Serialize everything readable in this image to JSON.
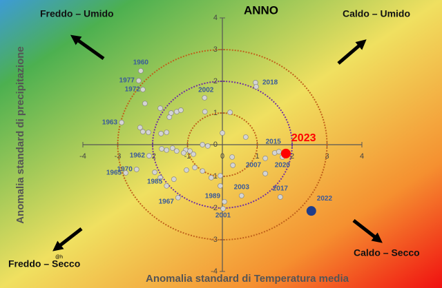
{
  "chart_data": {
    "type": "scatter",
    "title": "ANNO",
    "x_label": "Anomalia standard di Temperatura media",
    "y_label": "Anomalia standard di precipitazione",
    "annotations": [
      "Freddo – Umido",
      "Caldo – Umido",
      "Freddo – Secco",
      "Caldo – Secco",
      "@h"
    ],
    "xlim": [
      -4,
      4
    ],
    "ylim": [
      -4,
      4
    ],
    "xticks": [
      -4,
      -3,
      -2,
      -1,
      0,
      1,
      2,
      3,
      4
    ],
    "yticks": [
      -4,
      -3,
      -2,
      -1,
      0,
      1,
      2,
      3,
      4
    ],
    "circles": [
      {
        "r": 1,
        "color": "#c0601a"
      },
      {
        "r": 2,
        "color": "#7030a0"
      },
      {
        "r": 3,
        "color": "#c0601a"
      }
    ],
    "series": [
      {
        "color": "#d4d4d4",
        "x": [
          -2.34,
          -2.4,
          -2.28,
          -2.22,
          -1.78,
          -1.52,
          -1.47,
          -1.31,
          -1.19,
          -0.51,
          -2.89,
          -2.36,
          -2.28,
          -2.12,
          -1.6,
          -1.76,
          -0.5,
          0.22,
          0.0,
          0.95,
          0.97,
          0.67,
          1.5,
          1.62,
          1.23,
          1.72,
          -1.74,
          -1.6,
          -1.43,
          -1.31,
          -1.05,
          -0.93,
          -1.11,
          -0.83,
          -0.57,
          -0.42,
          0.28,
          0.3,
          -2.1,
          -2.46,
          -2.77,
          -1.94,
          -1.78,
          -1.39,
          -1.03,
          -0.79,
          -0.57,
          -0.32,
          -0.06,
          -0.06,
          0.55,
          1.23,
          1.66,
          0.06,
          0.02,
          -1.27,
          -1.6
        ],
        "y": [
          2.33,
          2.02,
          1.74,
          1.3,
          1.15,
          0.87,
          1.0,
          1.04,
          1.09,
          1.48,
          0.7,
          0.54,
          0.41,
          0.39,
          0.39,
          0.35,
          1.04,
          1.02,
          0.37,
          1.96,
          1.83,
          0.24,
          -0.26,
          -0.22,
          -0.43,
          -0.39,
          -0.13,
          -0.17,
          -0.11,
          -0.2,
          -0.17,
          -0.2,
          -0.26,
          -0.3,
          0.0,
          -0.04,
          -0.39,
          -0.65,
          -0.35,
          -0.78,
          -0.89,
          -0.87,
          -1.04,
          -1.09,
          -0.8,
          -0.72,
          -0.83,
          -1.04,
          -0.98,
          -1.3,
          -1.61,
          -0.91,
          -1.65,
          -1.8,
          -2.02,
          -1.67,
          -1.3
        ],
        "labels": [
          "1960",
          "1977",
          "1972",
          null,
          null,
          null,
          null,
          null,
          null,
          "2002",
          "1963",
          null,
          null,
          null,
          null,
          null,
          null,
          null,
          null,
          "2018",
          null,
          null,
          "2015",
          null,
          "2007",
          "2020",
          null,
          null,
          null,
          null,
          null,
          null,
          null,
          null,
          null,
          null,
          null,
          null,
          "1962",
          "1970",
          "1965",
          null,
          null,
          null,
          null,
          null,
          null,
          null,
          null,
          null,
          "2003",
          null,
          "2017",
          "1989",
          "2001",
          "1967",
          "1985"
        ]
      },
      {
        "color": "#ff0000",
        "x": [
          1.82
        ],
        "y": [
          -0.28
        ],
        "labels": [
          "2023"
        ]
      },
      {
        "color": "#1f3d8a",
        "x": [
          2.55
        ],
        "y": [
          -2.09
        ],
        "labels": [
          "2022"
        ]
      }
    ]
  }
}
